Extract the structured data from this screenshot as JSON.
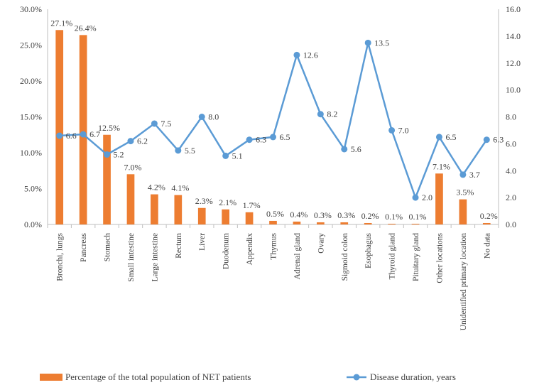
{
  "chart_data": {
    "type": "bar+line",
    "title": "",
    "categories": [
      "Bronchi, lungs",
      "Pancreas",
      "Stomach",
      "Small intestine",
      "Large intestine",
      "Rectum",
      "Liver",
      "Duodenum",
      "Appendix",
      "Thymus",
      "Adrenal gland",
      "Ovary",
      "Sigmoid colon",
      "Esophagus",
      "Thyroid gland",
      "Pituitary gland",
      "Other locations",
      "Unidentified primary location",
      "No data"
    ],
    "series": [
      {
        "name": "Percentage of the total population of NET patients",
        "type": "bar",
        "axis": "left",
        "color": "#ED7D31",
        "values": [
          27.1,
          26.4,
          12.5,
          7.0,
          4.2,
          4.1,
          2.3,
          2.1,
          1.7,
          0.5,
          0.4,
          0.3,
          0.3,
          0.2,
          0.1,
          0.1,
          7.1,
          3.5,
          0.2
        ],
        "labels": [
          "27.1%",
          "26.4%",
          "12.5%",
          "7.0%",
          "4.2%",
          "4.1%",
          "2.3%",
          "2.1%",
          "1.7%",
          "0.5%",
          "0.4%",
          "0.3%",
          "0.3%",
          "0.2%",
          "0.1%",
          "0.1%",
          "7.1%",
          "3.5%",
          "0.2%"
        ]
      },
      {
        "name": "Disease duration, years",
        "type": "line",
        "axis": "right",
        "color": "#5B9BD5",
        "values": [
          6.6,
          6.7,
          5.2,
          6.2,
          7.5,
          5.5,
          8.0,
          5.1,
          6.3,
          6.5,
          12.6,
          8.2,
          5.6,
          13.5,
          7.0,
          2.0,
          6.5,
          3.7,
          6.3
        ],
        "labels": [
          "6.6",
          "6.7",
          "5.2",
          "6.2",
          "7.5",
          "5.5",
          "8.0",
          "5.1",
          "6.3",
          "6.5",
          "12.6",
          "8.2",
          "5.6",
          "13.5",
          "7.0",
          "2.0",
          "6.5",
          "3.7",
          "6.3"
        ]
      }
    ],
    "y_left": {
      "min": 0,
      "max": 30,
      "ticks": [
        "0.0%",
        "5.0%",
        "10.0%",
        "15.0%",
        "20.0%",
        "25.0%",
        "30.0%"
      ]
    },
    "y_right": {
      "min": 0,
      "max": 16,
      "ticks": [
        "0.0",
        "2.0",
        "4.0",
        "6.0",
        "8.0",
        "10.0",
        "12.0",
        "14.0",
        "16.0"
      ]
    },
    "grid": false,
    "legend_position": "bottom"
  }
}
